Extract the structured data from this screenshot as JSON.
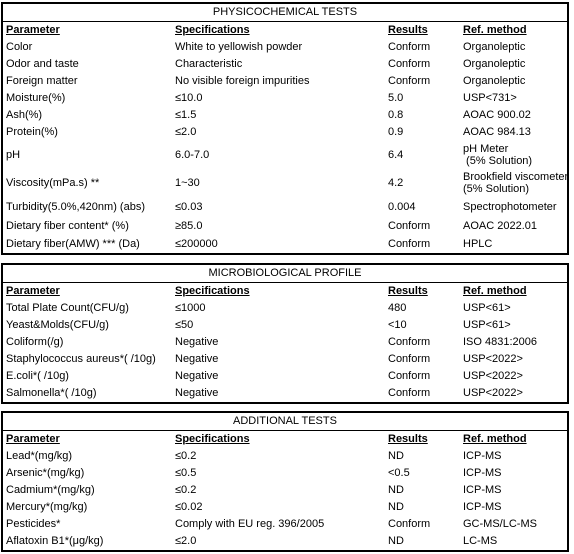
{
  "physicochemical": {
    "title": "PHYSICOCHEMICAL TESTS",
    "headers": [
      "Parameter",
      "Specifications",
      "Results",
      "Ref. method"
    ],
    "rows": [
      [
        "Color",
        "White to yellowish powder",
        "Conform",
        "Organoleptic"
      ],
      [
        "Odor and taste",
        "Characteristic",
        "Conform",
        "Organoleptic"
      ],
      [
        "Foreign matter",
        "No visible foreign impurities",
        "Conform",
        "Organoleptic"
      ],
      [
        "Moisture(%)",
        "≤10.0",
        "5.0",
        "USP<731>"
      ],
      [
        "Ash(%)",
        "≤1.5",
        "0.8",
        "AOAC 900.02"
      ],
      [
        "Protein(%)",
        "≤2.0",
        "0.9",
        "AOAC 984.13"
      ],
      [
        "pH",
        "6.0-7.0",
        "6.4",
        "pH Meter\n (5% Solution)"
      ],
      [
        "Viscosity(mPa.s) **",
        "1~30",
        "4.2",
        "Brookfield viscometer\n(5% Solution)"
      ],
      [
        "Turbidity(5.0%,420nm) (abs)",
        "≤0.03",
        "0.004",
        "Spectrophotometer"
      ],
      [
        "Dietary fiber content* (%)",
        "≥85.0",
        "Conform",
        "AOAC 2022.01"
      ],
      [
        "Dietary fiber(AMW) *** (Da)",
        "≤200000",
        "Conform",
        "HPLC"
      ]
    ]
  },
  "microbiological": {
    "title": "MICROBIOLOGICAL PROFILE",
    "headers": [
      "Parameter",
      "Specifications",
      "Results",
      "Ref. method"
    ],
    "rows": [
      [
        "Total Plate Count(CFU/g)",
        "≤1000",
        "480",
        "USP<61>"
      ],
      [
        "Yeast&Molds(CFU/g)",
        "≤50",
        "<10",
        "USP<61>"
      ],
      [
        "Coliform(/g)",
        "Negative",
        "Conform",
        "ISO 4831:2006"
      ],
      [
        "Staphylococcus aureus*( /10g)",
        "Negative",
        "Conform",
        "USP<2022>"
      ],
      [
        "E.coli*( /10g)",
        "Negative",
        "Conform",
        "USP<2022>"
      ],
      [
        "Salmonella*( /10g)",
        "Negative",
        "Conform",
        "USP<2022>"
      ]
    ]
  },
  "additional": {
    "title": "ADDITIONAL TESTS",
    "headers": [
      "Parameter",
      "Specifications",
      "Results",
      "Ref. method"
    ],
    "rows": [
      [
        "Lead*(mg/kg)",
        "≤0.2",
        "ND",
        "ICP-MS"
      ],
      [
        "Arsenic*(mg/kg)",
        "≤0.5",
        "<0.5",
        "ICP-MS"
      ],
      [
        "Cadmium*(mg/kg)",
        "≤0.2",
        "ND",
        "ICP-MS"
      ],
      [
        "Mercury*(mg/kg)",
        "≤0.02",
        "ND",
        "ICP-MS"
      ],
      [
        "Pesticides*",
        "Comply with EU reg. 396/2005",
        "Conform",
        "GC-MS/LC-MS"
      ],
      [
        "Aflatoxin B1*(μg/kg)",
        "≤2.0",
        "ND",
        "LC-MS"
      ]
    ]
  }
}
